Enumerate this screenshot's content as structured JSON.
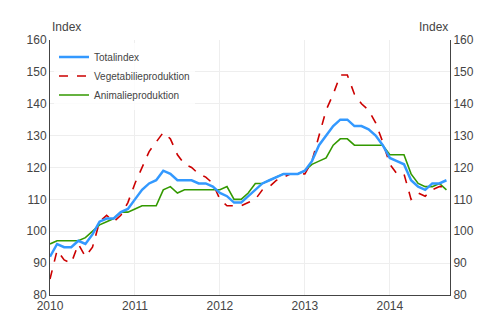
{
  "chart_data": {
    "type": "line",
    "ylabel": "Index",
    "y2label": "Index",
    "x": [
      2010,
      2010.0833333333333,
      2010.1666666666667,
      2010.25,
      2010.3333333333333,
      2010.4166666666667,
      2010.5,
      2010.5833333333333,
      2010.6666666666667,
      2010.75,
      2010.8333333333333,
      2010.9166666666667,
      2011,
      2011.0833333333333,
      2011.1666666666667,
      2011.25,
      2011.3333333333333,
      2011.4166666666667,
      2011.5,
      2011.5833333333333,
      2011.6666666666667,
      2011.75,
      2011.8333333333333,
      2011.9166666666667,
      2012,
      2012.0833333333333,
      2012.1666666666667,
      2012.25,
      2012.3333333333333,
      2012.4166666666667,
      2012.5,
      2012.5833333333333,
      2012.6666666666667,
      2012.75,
      2012.8333333333333,
      2012.9166666666667,
      2013,
      2013.0833333333333,
      2013.1666666666667,
      2013.25,
      2013.3333333333333,
      2013.4166666666667,
      2013.5,
      2013.5833333333333,
      2013.6666666666667,
      2013.75,
      2013.8333333333333,
      2013.9166666666667,
      2014,
      2014.0833333333333,
      2014.1666666666667,
      2014.25,
      2014.3333333333333,
      2014.4166666666667,
      2014.5,
      2014.5833333333333,
      2014.6666666666667
    ],
    "xlim": [
      2010,
      2014.7083333333333
    ],
    "xticks": [
      2010,
      2011,
      2012,
      2013,
      2014
    ],
    "ylim": [
      80,
      160
    ],
    "yticks": [
      80,
      90,
      100,
      110,
      120,
      130,
      140,
      150,
      160
    ],
    "y2lim": [
      80,
      160
    ],
    "y2ticks": [
      80,
      90,
      100,
      110,
      120,
      130,
      140,
      150,
      160
    ],
    "grid": true,
    "legend": "upper left",
    "series": [
      {
        "name": "Totalindex",
        "color": "#3399ff",
        "line_style": "solid",
        "values": [
          92,
          96,
          95,
          95,
          97,
          96,
          99,
          103,
          104,
          104,
          106,
          107,
          110,
          113,
          115,
          116,
          119,
          118,
          116,
          116,
          116,
          115,
          115,
          114,
          112,
          111,
          109,
          109,
          111,
          113,
          115,
          116,
          117,
          118,
          118,
          118,
          119,
          122,
          127,
          130,
          133,
          135,
          135,
          133,
          133,
          132,
          130,
          127,
          123,
          122,
          121,
          116,
          114,
          113,
          115,
          115,
          116
        ]
      },
      {
        "name": "Vegetabilieproduktion",
        "color": "#cc0000",
        "line_style": "dashed",
        "values": [
          85,
          94,
          91,
          90,
          96,
          92,
          95,
          103,
          105,
          103,
          105,
          109,
          115,
          120,
          125,
          128,
          131,
          129,
          124,
          121,
          120,
          118,
          117,
          115,
          110,
          108,
          108,
          108,
          109,
          110,
          113,
          114,
          116,
          117,
          118,
          118,
          118,
          122,
          130,
          138,
          143,
          149,
          149,
          143,
          140,
          138,
          134,
          128,
          121,
          118,
          118,
          110,
          112,
          111,
          113,
          114,
          114
        ]
      },
      {
        "name": "Animalieproduktion",
        "color": "#339900",
        "line_style": "solid",
        "values": [
          96,
          97,
          97,
          97,
          97,
          98,
          100,
          102,
          103,
          104,
          106,
          106,
          107,
          108,
          108,
          108,
          113,
          114,
          112,
          113,
          113,
          113,
          113,
          113,
          113,
          114,
          110,
          110,
          112,
          115,
          115,
          116,
          117,
          118,
          118,
          118,
          119,
          121,
          122,
          123,
          127,
          129,
          129,
          127,
          127,
          127,
          127,
          127,
          124,
          124,
          124,
          118,
          115,
          114,
          114,
          115,
          113
        ]
      }
    ]
  }
}
